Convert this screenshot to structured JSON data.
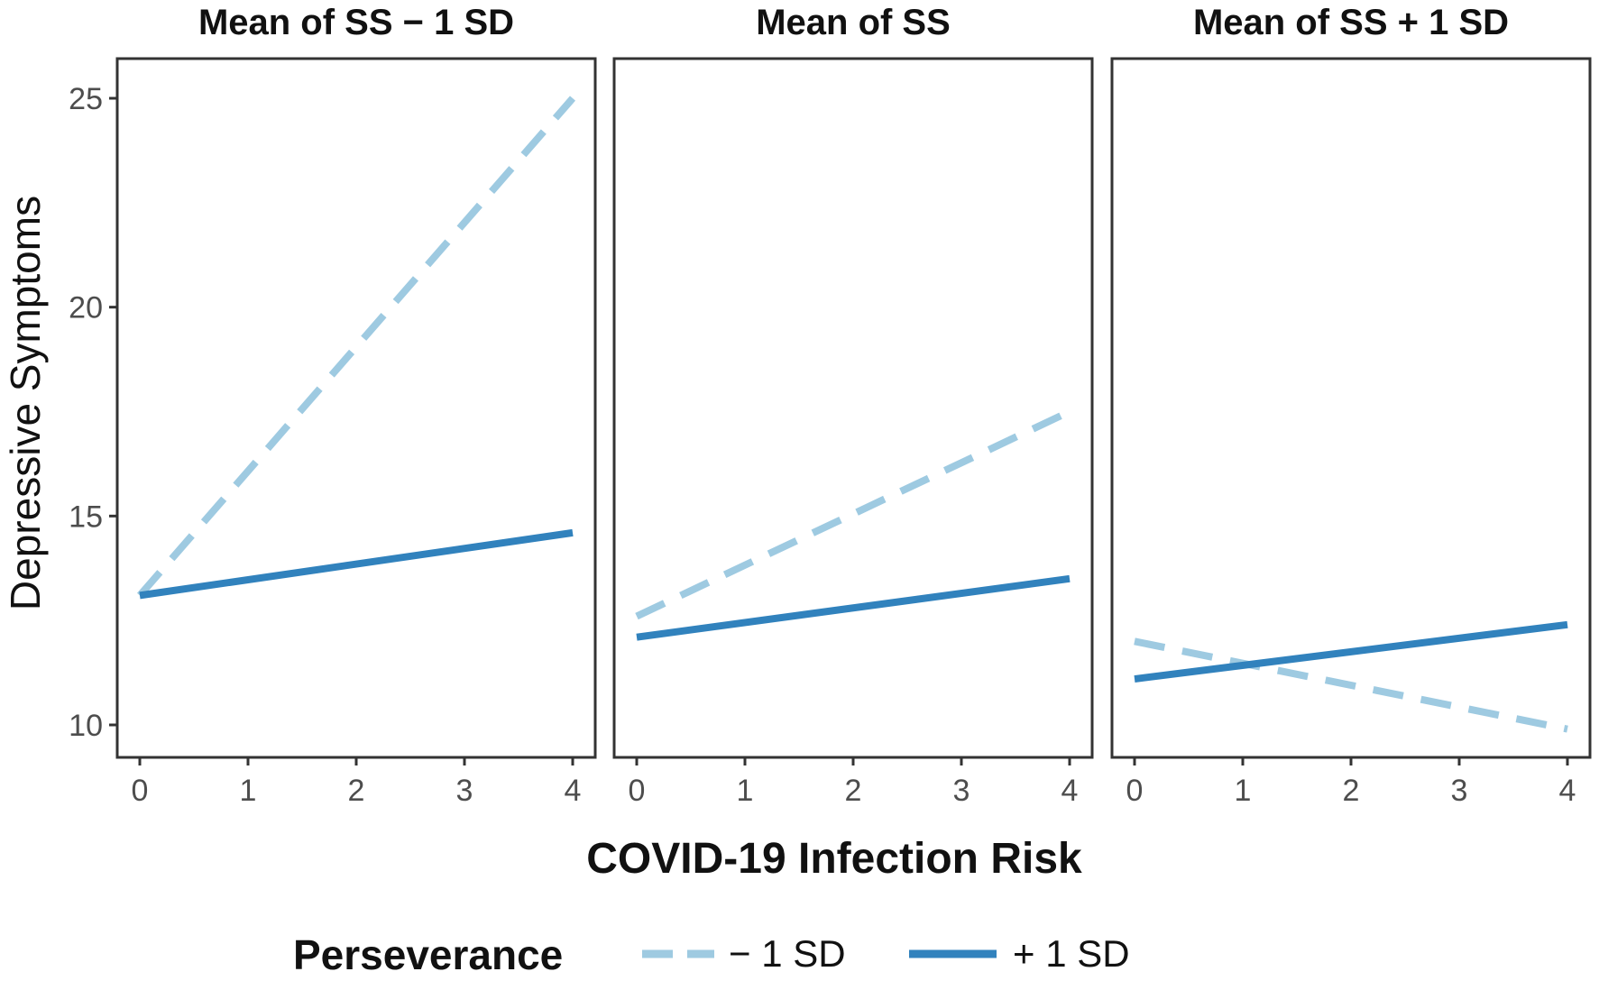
{
  "chart_data": {
    "type": "line",
    "xlabel": "COVID-19 Infection Risk",
    "ylabel": "Depressive Symptoms",
    "xlim": [
      0,
      4
    ],
    "ylim": [
      10,
      25
    ],
    "x_ticks": [
      0,
      1,
      2,
      3,
      4
    ],
    "y_ticks": [
      10,
      15,
      20,
      25
    ],
    "grid": false,
    "legend": {
      "title": "Perseverance",
      "placement": "bottom",
      "entries": [
        {
          "label": "− 1 SD",
          "color": "#9ecae1",
          "dash": "dashed"
        },
        {
          "label": "+ 1 SD",
          "color": "#3182bd",
          "dash": "solid"
        }
      ]
    },
    "panels": [
      {
        "title": "Mean of SS − 1 SD",
        "series": [
          {
            "name": "− 1 SD",
            "x": [
              0,
              4
            ],
            "y": [
              13.1,
              25.0
            ]
          },
          {
            "name": "+ 1 SD",
            "x": [
              0,
              4
            ],
            "y": [
              13.1,
              14.6
            ]
          }
        ]
      },
      {
        "title": "Mean of SS",
        "series": [
          {
            "name": "− 1 SD",
            "x": [
              0,
              4
            ],
            "y": [
              12.6,
              17.5
            ]
          },
          {
            "name": "+ 1 SD",
            "x": [
              0,
              4
            ],
            "y": [
              12.1,
              13.5
            ]
          }
        ]
      },
      {
        "title": "Mean of SS + 1 SD",
        "series": [
          {
            "name": "− 1 SD",
            "x": [
              0,
              4
            ],
            "y": [
              12.0,
              9.9
            ]
          },
          {
            "name": "+ 1 SD",
            "x": [
              0,
              4
            ],
            "y": [
              11.1,
              12.4
            ]
          }
        ]
      }
    ]
  }
}
